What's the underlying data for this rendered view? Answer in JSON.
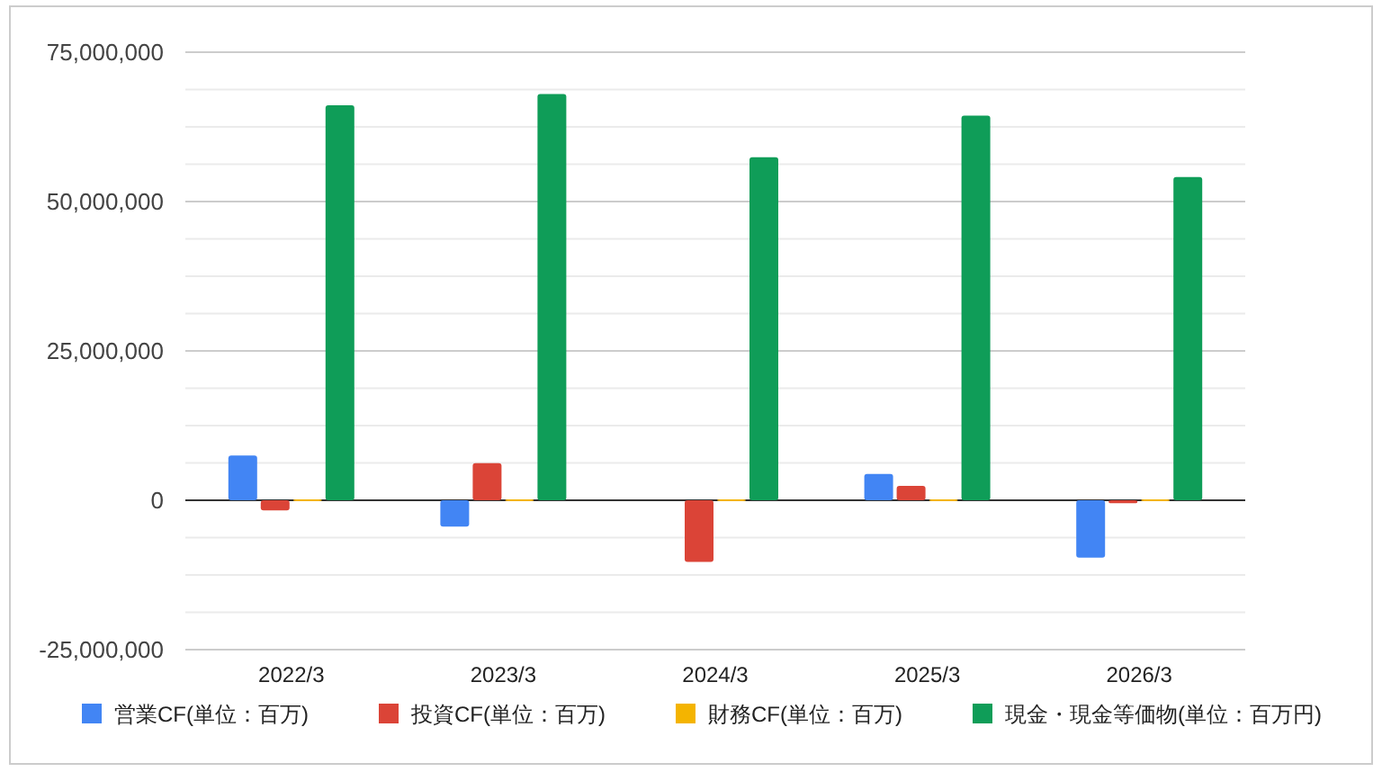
{
  "chart_data": {
    "type": "bar",
    "categories": [
      "2022/3",
      "2023/3",
      "2024/3",
      "2025/3",
      "2026/3"
    ],
    "series": [
      {
        "name": "営業CF(単位：百万)",
        "color": "#4285f4",
        "values": [
          7500000,
          -4400000,
          null,
          4400000,
          -9600000
        ]
      },
      {
        "name": "投資CF(単位：百万)",
        "color": "#db4437",
        "values": [
          -1700000,
          6200000,
          -10300000,
          2400000,
          -500000
        ]
      },
      {
        "name": "財務CF(単位：百万)",
        "color": "#f4b400",
        "values": [
          0,
          0,
          0,
          0,
          0
        ]
      },
      {
        "name": "現金・現金等価物(単位：百万円)",
        "color": "#0f9d58",
        "values": [
          66100000,
          68000000,
          57400000,
          64400000,
          54100000
        ]
      }
    ],
    "ylim": [
      -25000000,
      75000000
    ],
    "yticks": [
      {
        "value": -25000000,
        "label": "-25,000,000"
      },
      {
        "value": -18750000,
        "label": null
      },
      {
        "value": -12500000,
        "label": null
      },
      {
        "value": -6250000,
        "label": null
      },
      {
        "value": 0,
        "label": "0"
      },
      {
        "value": 6250000,
        "label": null
      },
      {
        "value": 12500000,
        "label": null
      },
      {
        "value": 18750000,
        "label": null
      },
      {
        "value": 25000000,
        "label": "25,000,000"
      },
      {
        "value": 31250000,
        "label": null
      },
      {
        "value": 37500000,
        "label": null
      },
      {
        "value": 43750000,
        "label": null
      },
      {
        "value": 50000000,
        "label": "50,000,000"
      },
      {
        "value": 56250000,
        "label": null
      },
      {
        "value": 62500000,
        "label": null
      },
      {
        "value": 68750000,
        "label": null
      },
      {
        "value": 75000000,
        "label": "75,000,000"
      }
    ],
    "grid": "y",
    "legend": "bottom"
  }
}
